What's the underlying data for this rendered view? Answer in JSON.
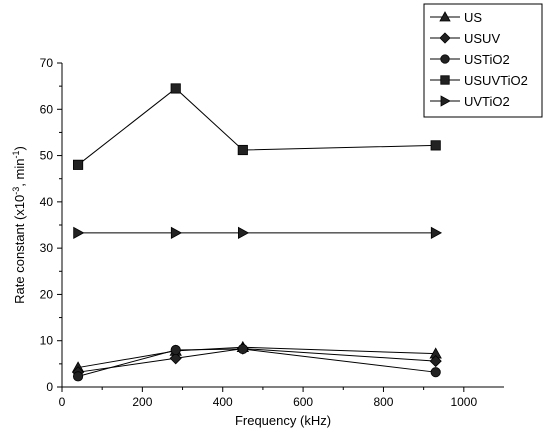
{
  "chart_data": {
    "type": "line",
    "title": "",
    "xlabel": "Frequency (kHz)",
    "ylabel": "Rate constant (x10",
    "ylabel_sup": "-3",
    "ylabel_mid": ", min",
    "ylabel_sup2": "-1",
    "ylabel_end": ")",
    "xlim": [
      0,
      1100
    ],
    "ylim": [
      0,
      70
    ],
    "x_ticks": [
      0,
      200,
      400,
      600,
      800,
      1000
    ],
    "y_ticks": [
      0,
      10,
      20,
      30,
      40,
      50,
      60,
      70
    ],
    "x_tick_labels": [
      "0",
      "200",
      "400",
      "600",
      "800",
      "1000"
    ],
    "y_tick_labels": [
      "0",
      "10",
      "20",
      "30",
      "40",
      "50",
      "60",
      "70"
    ],
    "grid": false,
    "legend_position": "top-right",
    "series": [
      {
        "name": "US",
        "marker": "triangle-up",
        "x": [
          40,
          283,
          450,
          930
        ],
        "y": [
          4.2,
          7.8,
          8.6,
          7.2
        ]
      },
      {
        "name": "USUV",
        "marker": "diamond",
        "x": [
          40,
          283,
          450,
          930
        ],
        "y": [
          3.2,
          6.2,
          8.3,
          5.6
        ]
      },
      {
        "name": "USTiO2",
        "marker": "circle",
        "x": [
          40,
          283,
          450,
          930
        ],
        "y": [
          2.3,
          8.0,
          8.2,
          3.2
        ]
      },
      {
        "name": "USUVTiO2",
        "marker": "square",
        "x": [
          40,
          283,
          450,
          930
        ],
        "y": [
          48.0,
          64.5,
          51.2,
          52.2
        ]
      },
      {
        "name": "UVTiO2",
        "marker": "triangle-right",
        "x": [
          40,
          283,
          450,
          930
        ],
        "y": [
          33.3,
          33.3,
          33.3,
          33.3
        ]
      }
    ]
  }
}
